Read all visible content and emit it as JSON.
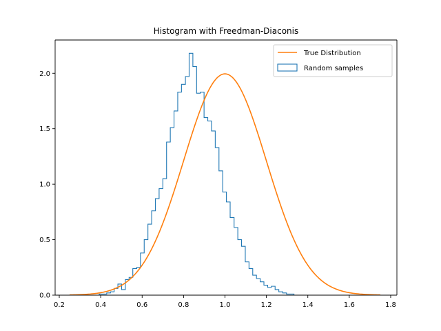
{
  "chart_data": {
    "type": "histogram",
    "title": "Histogram with Freedman-Diaconis",
    "xlabel": "",
    "ylabel": "",
    "xlim": [
      0.18,
      1.83
    ],
    "ylim": [
      0,
      2.3
    ],
    "xticks": [
      0.2,
      0.4,
      0.6,
      0.8,
      1.0,
      1.2,
      1.4,
      1.6,
      1.8
    ],
    "yticks": [
      0.0,
      0.5,
      1.0,
      1.5,
      2.0
    ],
    "grid": false,
    "legend_position": "top-right",
    "legend": [
      {
        "label": "True Distribution",
        "kind": "line",
        "color": "#ff7f0e"
      },
      {
        "label": "Random samples",
        "kind": "step",
        "color": "#1f77b4"
      }
    ],
    "histogram": {
      "name": "Random samples",
      "color": "#1f77b4",
      "bin_edges": [
        0.248,
        0.266,
        0.284,
        0.302,
        0.32,
        0.339,
        0.357,
        0.375,
        0.393,
        0.411,
        0.429,
        0.447,
        0.465,
        0.483,
        0.501,
        0.519,
        0.537,
        0.555,
        0.574,
        0.592,
        0.61,
        0.628,
        0.646,
        0.664,
        0.682,
        0.7,
        0.718,
        0.736,
        0.754,
        0.772,
        0.79,
        0.809,
        0.827,
        0.845,
        0.863,
        0.881,
        0.899,
        0.917,
        0.935,
        0.953,
        0.971,
        0.989,
        1.007,
        1.025,
        1.044,
        1.062,
        1.08,
        1.098,
        1.116,
        1.134,
        1.152,
        1.17,
        1.188,
        1.206,
        1.224,
        1.242,
        1.26,
        1.279,
        1.297,
        1.315,
        1.333,
        1.351,
        1.369,
        1.387,
        1.405,
        1.423,
        1.441,
        1.459,
        1.477,
        1.495,
        1.514,
        1.532,
        1.55,
        1.568,
        1.586,
        1.604,
        1.622,
        1.64,
        1.658,
        1.676,
        1.694,
        1.712,
        1.73,
        1.75
      ],
      "densities": [
        0.0,
        0.0,
        0.0,
        0.0,
        0.0,
        0.0,
        0.0,
        0.0,
        0.01,
        0.01,
        0.02,
        0.03,
        0.06,
        0.1,
        0.05,
        0.14,
        0.16,
        0.24,
        0.25,
        0.38,
        0.5,
        0.64,
        0.76,
        0.87,
        0.96,
        1.05,
        1.38,
        1.51,
        1.66,
        1.83,
        1.9,
        1.97,
        2.18,
        2.06,
        1.82,
        1.83,
        1.6,
        1.57,
        1.48,
        1.33,
        1.12,
        0.93,
        0.84,
        0.7,
        0.61,
        0.5,
        0.44,
        0.3,
        0.24,
        0.18,
        0.15,
        0.12,
        0.09,
        0.07,
        0.08,
        0.05,
        0.03,
        0.02,
        0.01,
        0.01,
        0.0,
        0.0,
        0.0,
        0.0,
        0.0,
        0.0,
        0.0,
        0.0,
        0.0,
        0.0,
        0.0,
        0.0,
        0.0,
        0.0,
        0.0,
        0.0,
        0.0,
        0.0,
        0.0,
        0.0,
        0.0,
        0.0,
        0.0
      ]
    },
    "curve": {
      "name": "True Distribution",
      "color": "#ff7f0e",
      "mean": 1.0,
      "std": 0.2,
      "x_range": [
        0.25,
        1.75
      ]
    }
  }
}
